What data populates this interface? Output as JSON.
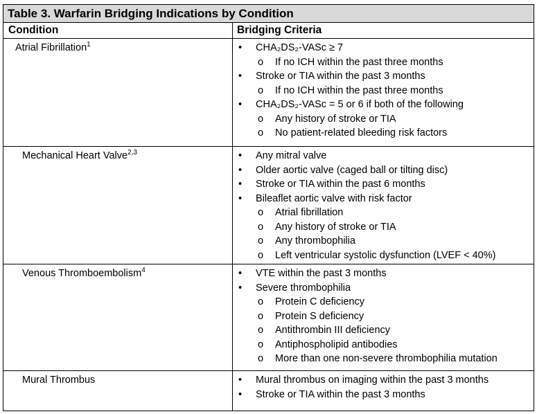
{
  "table": {
    "title": "Table 3. Warfarin Bridging Indications by Condition",
    "headers": [
      "Condition",
      "Bridging Criteria"
    ],
    "rows": [
      {
        "condition": "Atrial Fibrillation",
        "ref": "1",
        "items": [
          {
            "text": "CHA₂DS₂-VASc ≥ 7",
            "sub": [
              "If no ICH within the past three months"
            ]
          },
          {
            "text": "Stroke or TIA within the past 3 months",
            "sub": [
              "If no ICH within the past three months"
            ]
          },
          {
            "text": "CHA₂DS₂-VASc = 5 or 6 if both of the following",
            "sub": [
              "Any history of stroke or TIA",
              "No patient-related bleeding risk factors"
            ]
          }
        ]
      },
      {
        "condition": "Mechanical Heart Valve",
        "ref": "2,3",
        "items": [
          {
            "text": "Any mitral valve",
            "sub": []
          },
          {
            "text": "Older aortic valve (caged ball or tilting disc)",
            "sub": []
          },
          {
            "text": "Stroke or TIA within the past 6 months",
            "sub": []
          },
          {
            "text": "Bileaflet aortic valve with risk factor",
            "sub": [
              "Atrial fibrillation",
              "Any history of stroke or TIA",
              "Any thrombophilia",
              "Left ventricular systolic dysfunction (LVEF < 40%)"
            ]
          }
        ]
      },
      {
        "condition": "Venous Thromboembolism",
        "ref": "4",
        "items": [
          {
            "text": "VTE within the past 3 months",
            "sub": []
          },
          {
            "text": "Severe thrombophilia",
            "sub": [
              "Protein C deficiency",
              "Protein S deficiency",
              "Antithrombin III deficiency",
              "Antiphospholipid antibodies",
              "More than one non-severe thrombophilia mutation"
            ]
          }
        ]
      },
      {
        "condition": "Mural Thrombus",
        "ref": null,
        "items": [
          {
            "text": "Mural thrombus on imaging within the past 3 months",
            "sub": []
          },
          {
            "text": "Stroke or TIA within the past 3 months",
            "sub": []
          }
        ]
      }
    ]
  }
}
